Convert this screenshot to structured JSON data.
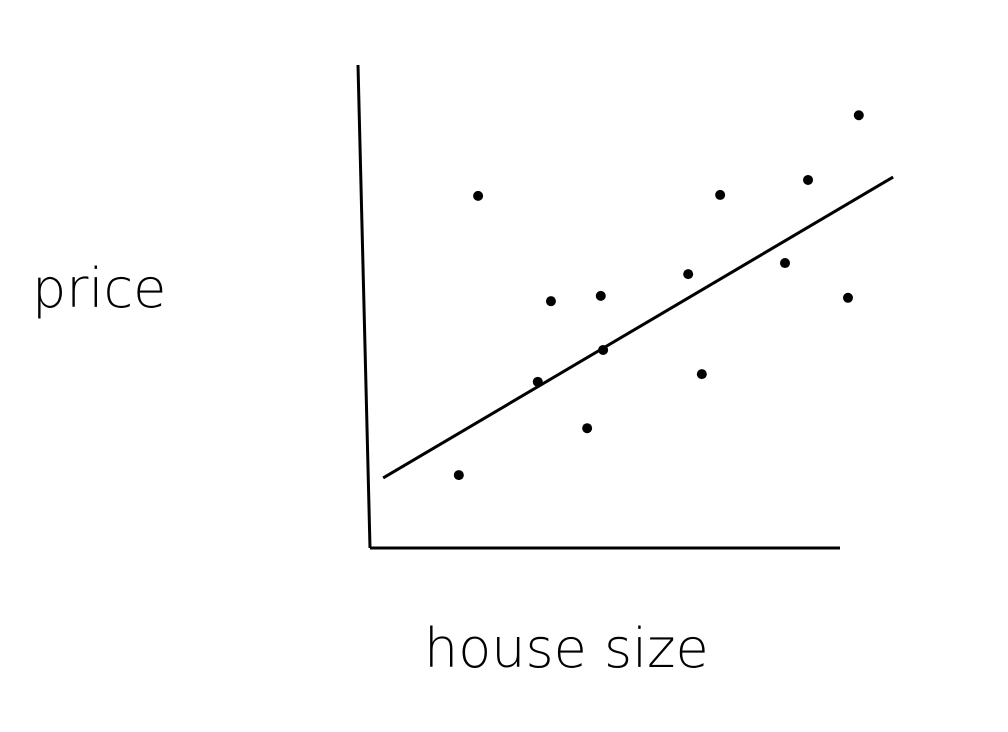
{
  "chart_data": {
    "type": "scatter",
    "x_label": "house size",
    "y_label": "price",
    "x": [
      23.0,
      38.5,
      49.1,
      35.7,
      49.6,
      46.2,
      18.9,
      67.7,
      74.5,
      70.6,
      93.2,
      88.3,
      104.0,
      101.7
    ],
    "y": [
      72.9,
      51.1,
      52.2,
      34.4,
      41.0,
      24.8,
      15.1,
      56.7,
      73.1,
      36.0,
      76.2,
      59.0,
      89.6,
      51.8
    ],
    "color": "#000000",
    "trend_line": {
      "x": [
        2.8,
        111.3
      ],
      "y": [
        14.5,
        76.8
      ]
    },
    "xlim": [
      0,
      112
    ],
    "ylim": [
      0,
      100
    ]
  }
}
